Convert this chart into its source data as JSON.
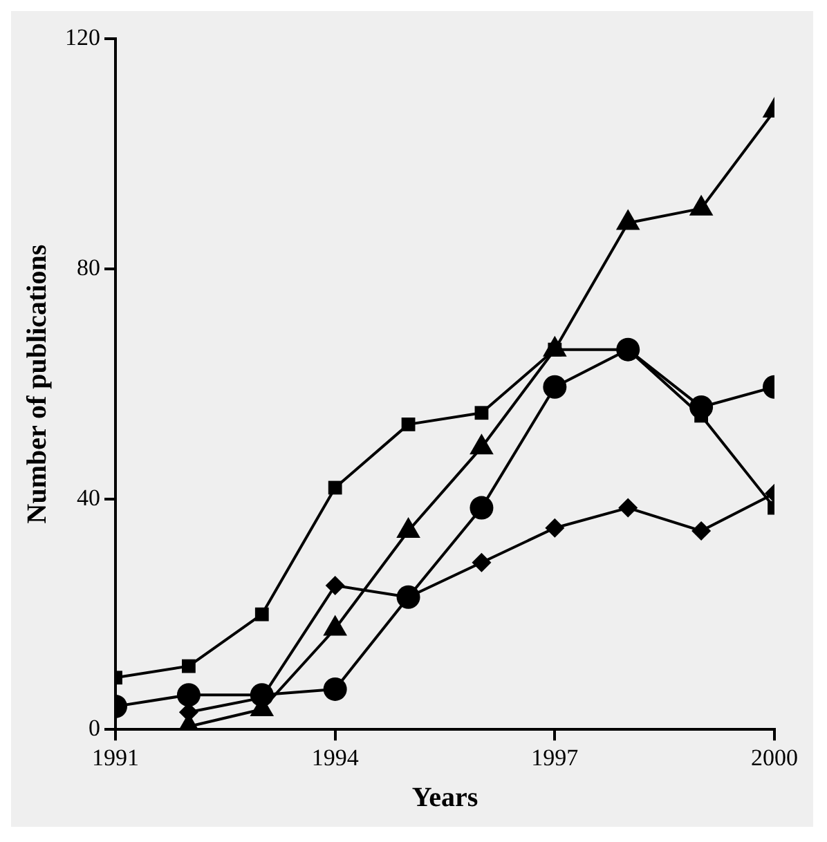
{
  "chart_data": {
    "type": "line",
    "xlabel": "Years",
    "ylabel": "Number of publications",
    "x": [
      1991,
      1992,
      1993,
      1994,
      1995,
      1996,
      1997,
      1998,
      1999,
      2000
    ],
    "xlim": [
      1991,
      2000
    ],
    "xticks": [
      1991,
      1994,
      1997,
      2000
    ],
    "ylim": [
      0,
      120
    ],
    "yticks": [
      0,
      40,
      80,
      120
    ],
    "grid": false,
    "legend": false,
    "line_style": "solid",
    "series": [
      {
        "color": "#000000",
        "marker": "square",
        "values": [
          9,
          11,
          20,
          42,
          53,
          55,
          66,
          66,
          54.5,
          38.5
        ]
      },
      {
        "color": "#000000",
        "marker": "circle",
        "values": [
          4,
          6,
          6,
          7,
          23,
          38.5,
          59.5,
          66,
          56,
          59.5
        ]
      },
      {
        "color": "#000000",
        "marker": "triangle",
        "values": [
          null,
          0.5,
          3.5,
          17.5,
          34.5,
          49,
          66,
          88,
          90.5,
          107.5
        ]
      },
      {
        "color": "#000000",
        "marker": "diamond",
        "values": [
          null,
          3,
          5.5,
          25,
          23,
          29,
          35,
          38.5,
          34.5,
          41
        ]
      }
    ]
  }
}
